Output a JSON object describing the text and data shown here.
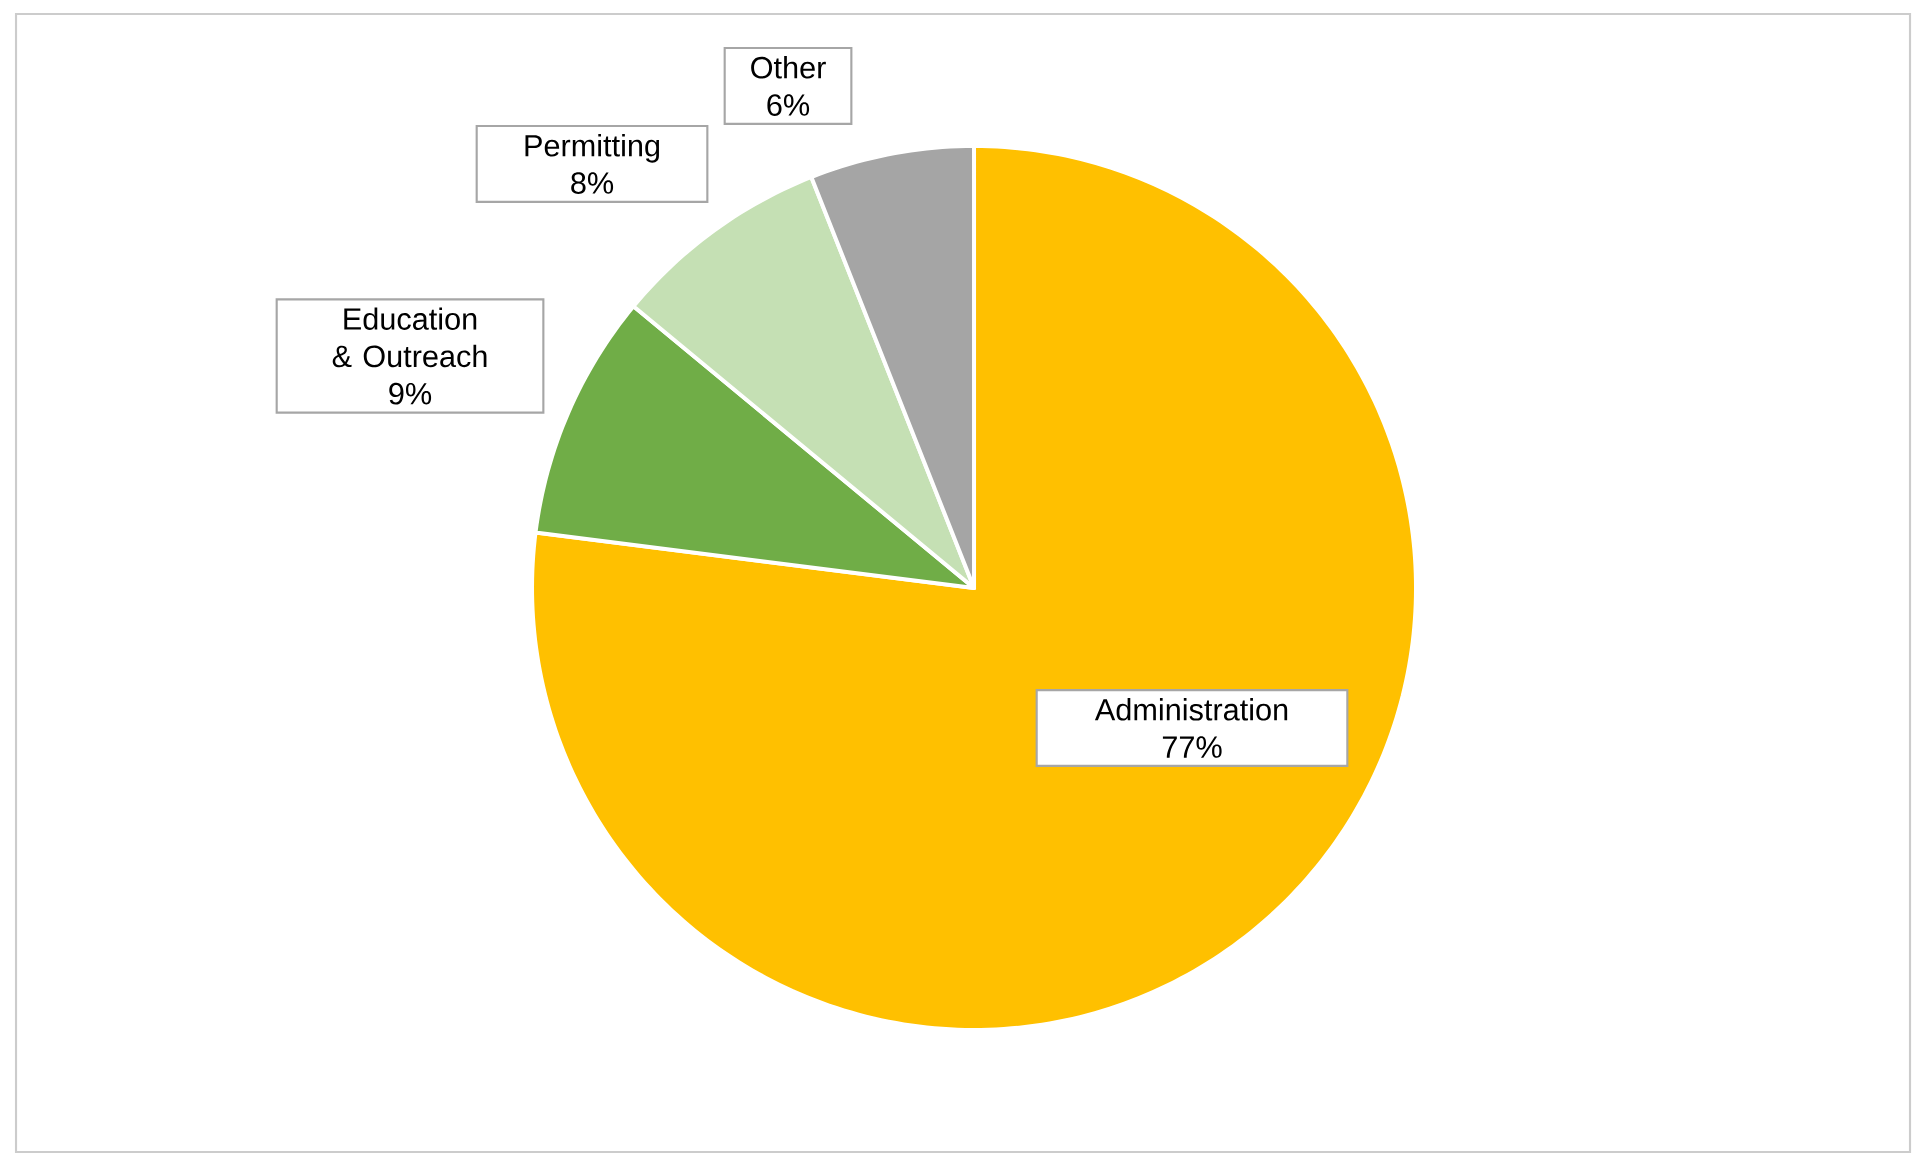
{
  "chart_data": {
    "type": "pie",
    "categories": [
      "Administration",
      "Education & Outreach",
      "Permitting",
      "Other"
    ],
    "values": [
      77,
      9,
      8,
      6
    ],
    "value_labels": [
      "77%",
      "9%",
      "8%",
      "6%"
    ],
    "colors": [
      "#ffc000",
      "#70ad47",
      "#c5e0b4",
      "#a5a5a5"
    ]
  }
}
